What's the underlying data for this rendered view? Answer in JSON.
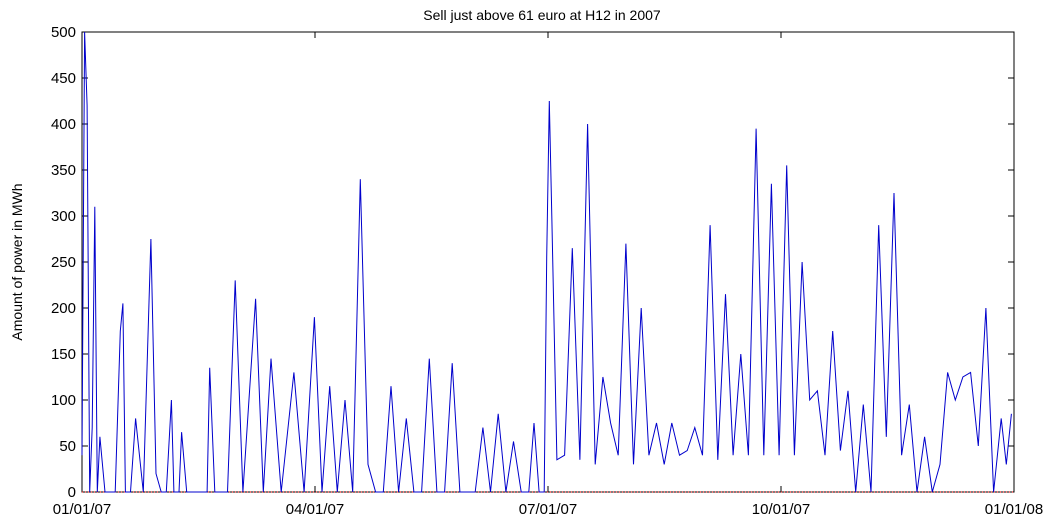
{
  "chart_data": {
    "type": "line",
    "title": "Sell just above 61 euro at H12 in 2007",
    "xlabel": "",
    "ylabel": "Amount of power in MWh",
    "x_range": [
      "2007-01-01",
      "2008-01-01"
    ],
    "ylim": [
      0,
      500
    ],
    "x_ticks": [
      "01/01/07",
      "04/01/07",
      "07/01/07",
      "10/01/07",
      "01/01/08"
    ],
    "y_ticks": [
      0,
      50,
      100,
      150,
      200,
      250,
      300,
      350,
      400,
      450,
      500
    ],
    "grid": false,
    "colors": {
      "series": "#0000cc",
      "baseline": "#ff0000"
    },
    "series": [
      {
        "x": [
          "2007-01-01",
          "2007-01-02",
          "2007-01-03",
          "2007-01-04",
          "2007-01-05",
          "2007-01-06",
          "2007-01-07",
          "2007-01-08",
          "2007-01-10",
          "2007-01-12",
          "2007-01-13",
          "2007-01-14",
          "2007-01-16",
          "2007-01-17",
          "2007-01-18",
          "2007-01-20",
          "2007-01-22",
          "2007-01-25",
          "2007-01-28",
          "2007-01-30",
          "2007-02-01",
          "2007-02-03",
          "2007-02-05",
          "2007-02-06",
          "2007-02-07",
          "2007-02-08",
          "2007-02-09",
          "2007-02-11",
          "2007-02-13",
          "2007-02-15",
          "2007-02-17",
          "2007-02-19",
          "2007-02-20",
          "2007-02-22",
          "2007-02-24",
          "2007-02-27",
          "2007-03-02",
          "2007-03-05",
          "2007-03-10",
          "2007-03-13",
          "2007-03-16",
          "2007-03-20",
          "2007-03-25",
          "2007-03-29",
          "2007-04-02",
          "2007-04-05",
          "2007-04-08",
          "2007-04-11",
          "2007-04-14",
          "2007-04-17",
          "2007-04-20",
          "2007-04-23",
          "2007-04-26",
          "2007-04-29",
          "2007-05-02",
          "2007-05-05",
          "2007-05-08",
          "2007-05-11",
          "2007-05-14",
          "2007-05-17",
          "2007-05-20",
          "2007-05-23",
          "2007-05-26",
          "2007-05-29",
          "2007-06-01",
          "2007-06-04",
          "2007-06-07",
          "2007-06-10",
          "2007-06-13",
          "2007-06-16",
          "2007-06-19",
          "2007-06-22",
          "2007-06-25",
          "2007-06-27",
          "2007-06-29",
          "2007-07-01",
          "2007-07-02",
          "2007-07-03",
          "2007-07-04",
          "2007-07-06",
          "2007-07-09",
          "2007-07-12",
          "2007-07-15",
          "2007-07-18",
          "2007-07-21",
          "2007-07-24",
          "2007-07-27",
          "2007-07-30",
          "2007-08-02",
          "2007-08-05",
          "2007-08-08",
          "2007-08-11",
          "2007-08-14",
          "2007-08-17",
          "2007-08-20",
          "2007-08-23",
          "2007-08-26",
          "2007-08-29",
          "2007-09-01",
          "2007-09-04",
          "2007-09-07",
          "2007-09-10",
          "2007-09-13",
          "2007-09-16",
          "2007-09-19",
          "2007-09-22",
          "2007-09-25",
          "2007-09-28",
          "2007-10-01",
          "2007-10-04",
          "2007-10-07",
          "2007-10-10",
          "2007-10-13",
          "2007-10-16",
          "2007-10-19",
          "2007-10-22",
          "2007-10-25",
          "2007-10-28",
          "2007-10-31",
          "2007-11-03",
          "2007-11-06",
          "2007-11-09",
          "2007-11-12",
          "2007-11-15",
          "2007-11-18",
          "2007-11-21",
          "2007-11-24",
          "2007-11-27",
          "2007-11-30",
          "2007-12-03",
          "2007-12-06",
          "2007-12-09",
          "2007-12-12",
          "2007-12-15",
          "2007-12-18",
          "2007-12-21",
          "2007-12-24",
          "2007-12-27",
          "2007-12-29",
          "2007-12-31"
        ],
        "values": [
          40,
          500,
          420,
          0,
          70,
          310,
          0,
          60,
          0,
          0,
          0,
          0,
          175,
          205,
          0,
          0,
          80,
          0,
          275,
          20,
          0,
          0,
          100,
          0,
          0,
          0,
          65,
          0,
          0,
          0,
          0,
          0,
          135,
          0,
          0,
          0,
          230,
          0,
          210,
          0,
          145,
          0,
          130,
          0,
          190,
          0,
          115,
          0,
          100,
          0,
          340,
          30,
          0,
          0,
          115,
          0,
          80,
          0,
          0,
          145,
          0,
          0,
          140,
          0,
          0,
          0,
          70,
          0,
          85,
          0,
          55,
          0,
          0,
          75,
          0,
          0,
          255,
          425,
          300,
          35,
          40,
          265,
          35,
          400,
          30,
          125,
          75,
          40,
          270,
          30,
          200,
          40,
          75,
          30,
          75,
          40,
          45,
          70,
          40,
          290,
          35,
          215,
          40,
          150,
          40,
          395,
          40,
          335,
          40,
          355,
          40,
          250,
          100,
          110,
          40,
          175,
          45,
          110,
          0,
          95,
          0,
          290,
          60,
          325,
          40,
          95,
          0,
          60,
          0,
          30,
          130,
          100,
          125,
          130,
          50,
          200,
          0,
          80,
          30,
          85
        ]
      }
    ]
  }
}
